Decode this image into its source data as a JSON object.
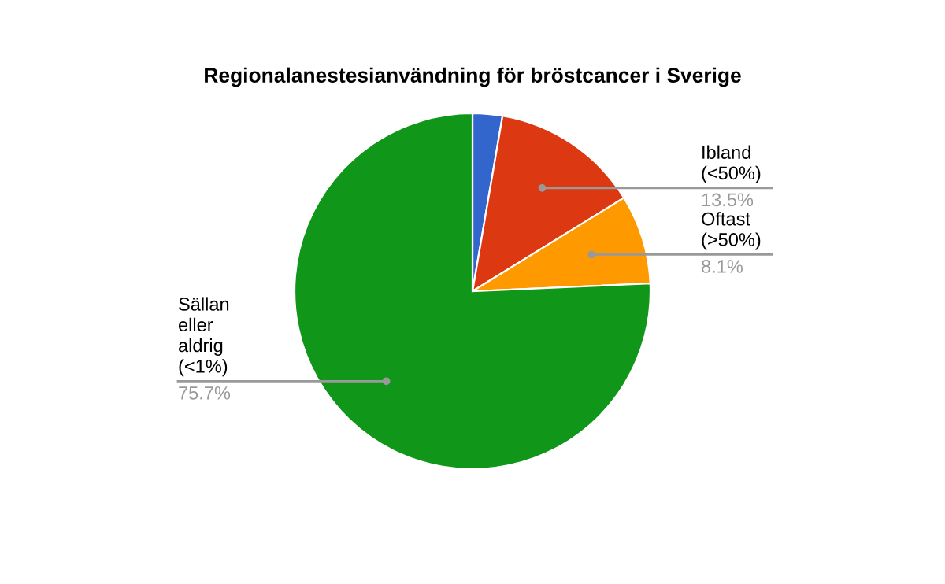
{
  "chart_data": {
    "type": "pie",
    "title": "Regionalanestesianvändning för bröstcancer i Sverige",
    "categories": [
      null,
      "Ibland (<50%)",
      "Oftast (>50%)",
      "Sällan eller aldrig (<1%)"
    ],
    "values": [
      2.7,
      13.5,
      8.1,
      75.7
    ],
    "colors": [
      "#3366cc",
      "#dc3912",
      "#ff9900",
      "#109618"
    ],
    "value_labels": [
      null,
      "13.5%",
      "8.1%",
      "75.7%"
    ],
    "legend": false
  }
}
